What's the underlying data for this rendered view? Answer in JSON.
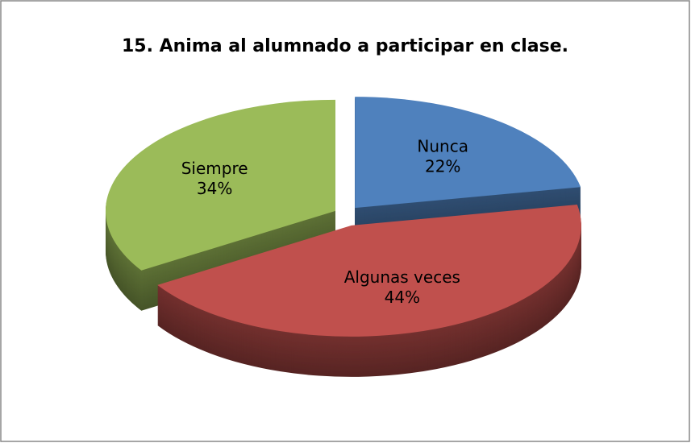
{
  "chart_data": {
    "type": "pie",
    "title": "15. Anima al alumnado a participar en clase.",
    "categories": [
      "Nunca",
      "Algunas veces",
      "Siempre"
    ],
    "values": [
      22,
      44,
      34
    ],
    "value_labels": [
      "22%",
      "44%",
      "34%"
    ],
    "colors": [
      "#4f81bd",
      "#c0504d",
      "#9bbb59"
    ]
  }
}
